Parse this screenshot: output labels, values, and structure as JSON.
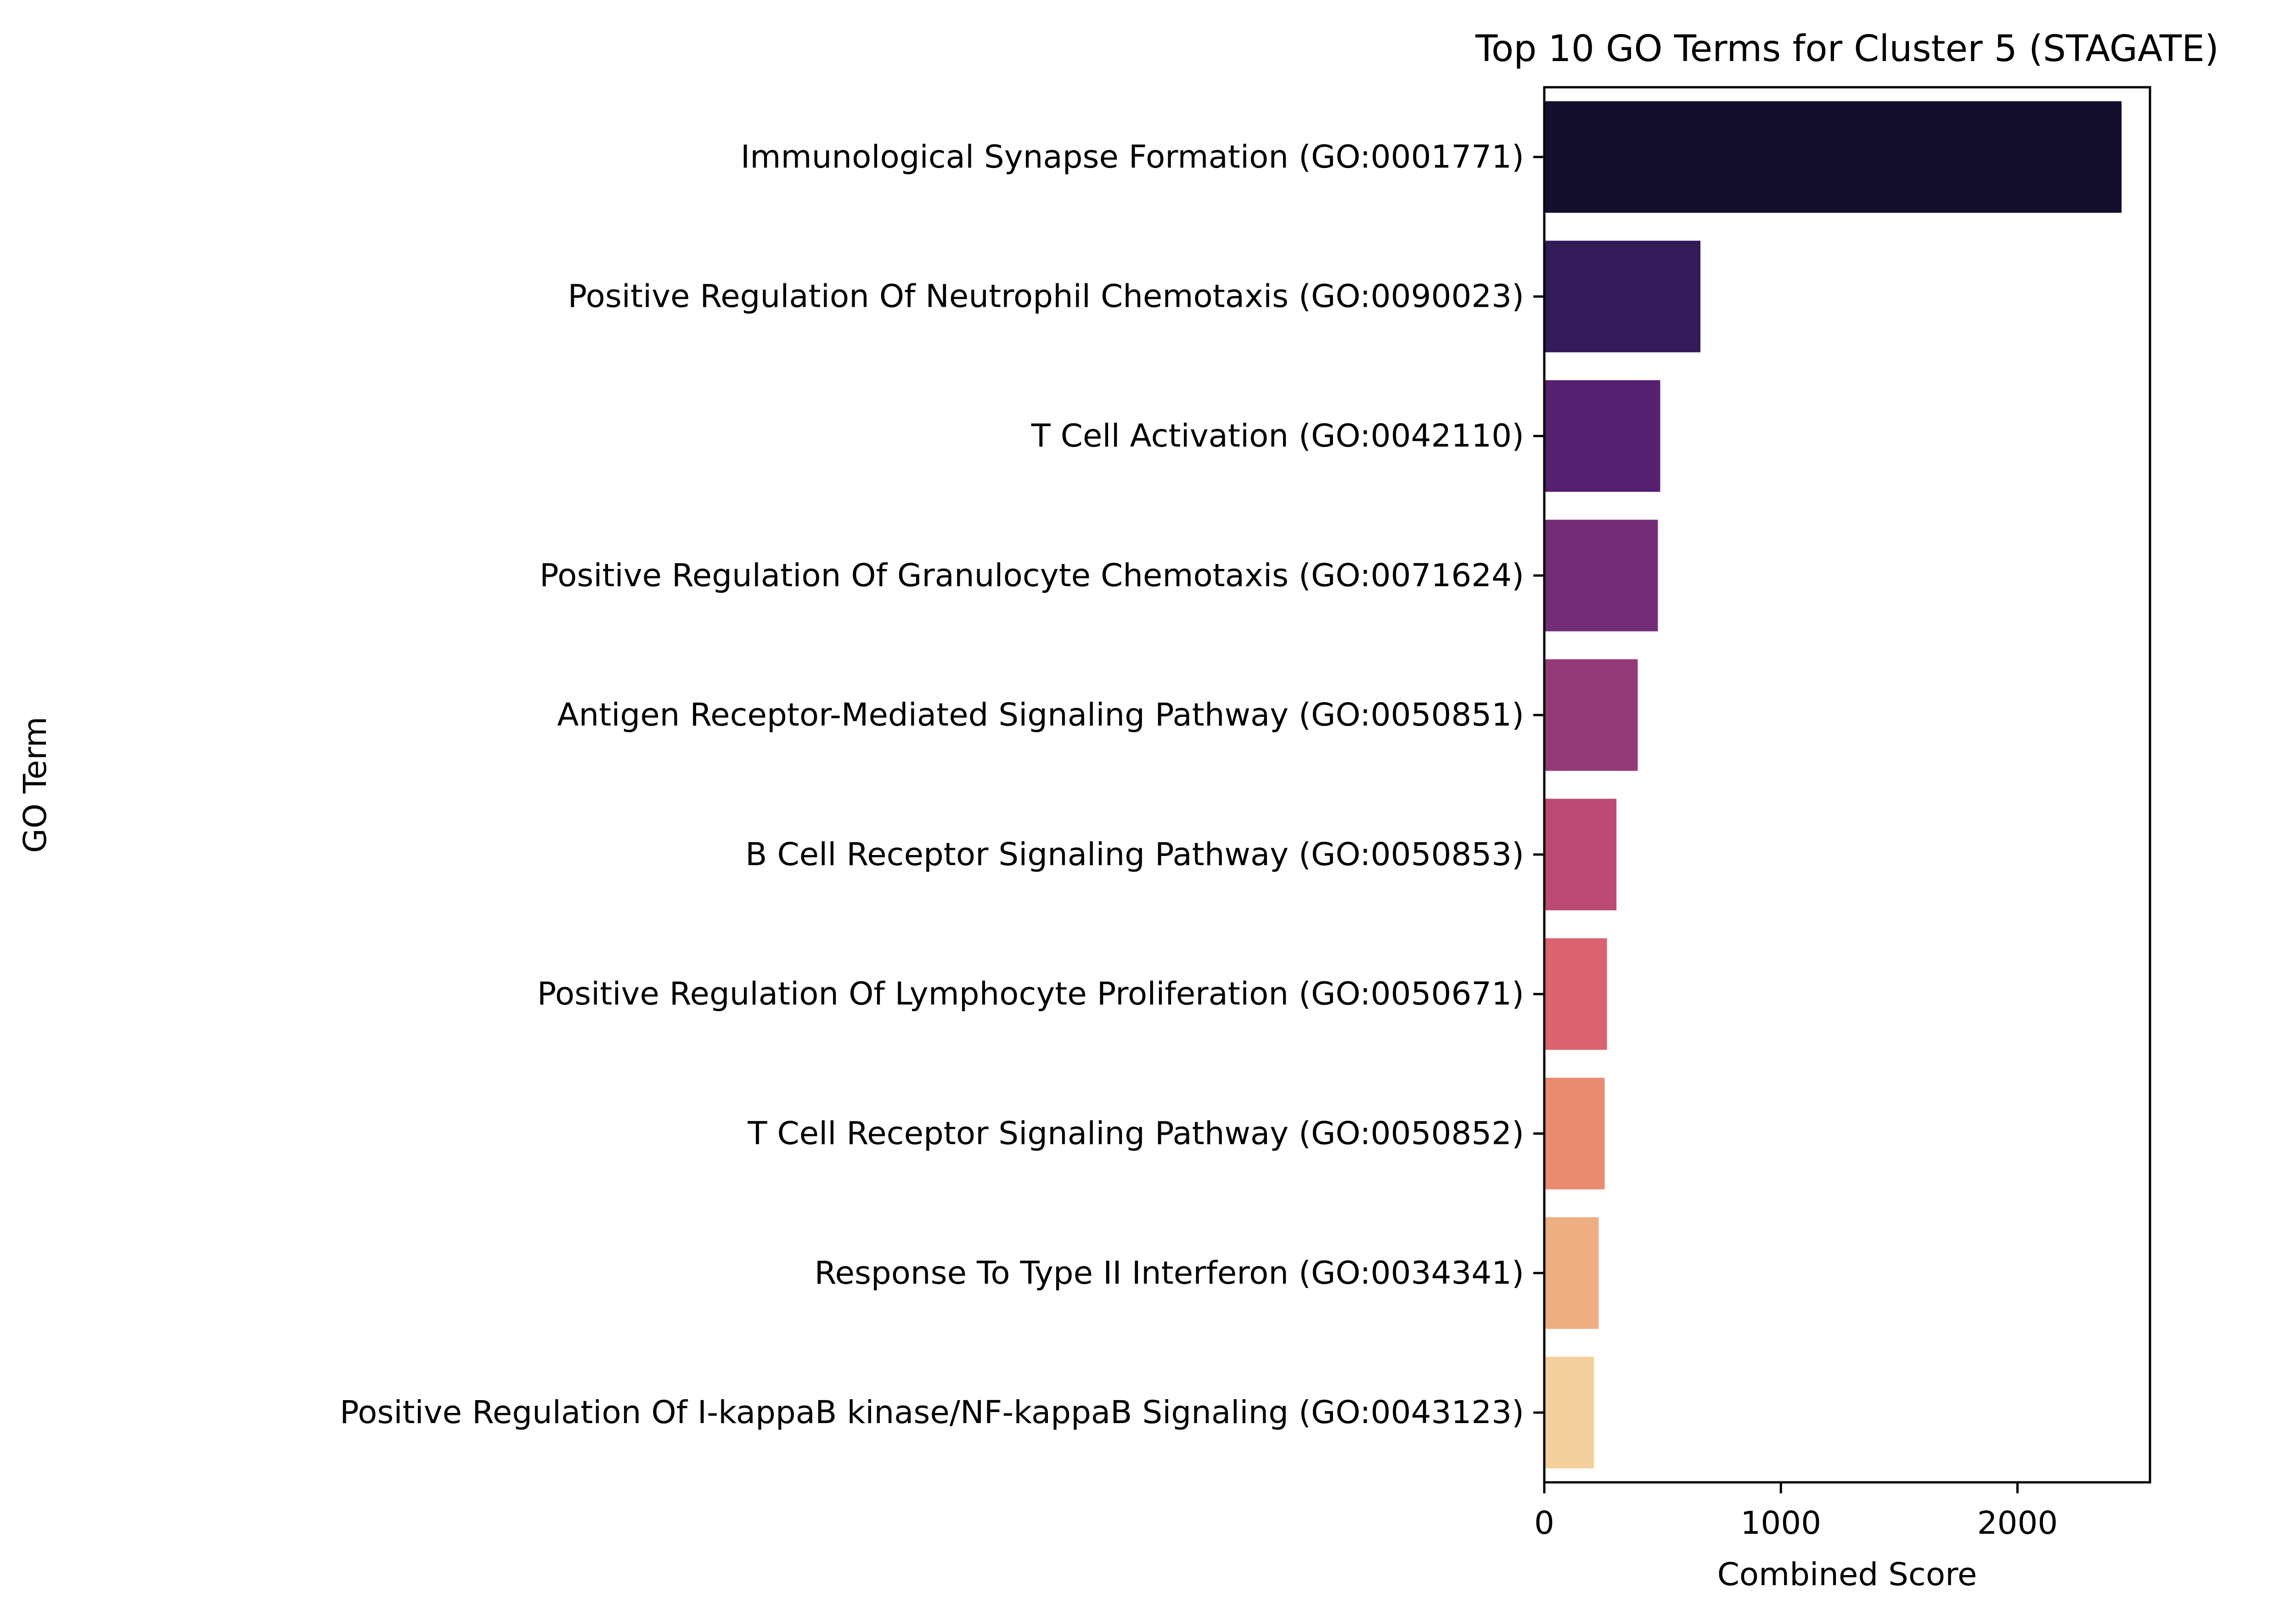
{
  "chart_data": {
    "type": "bar",
    "orientation": "horizontal",
    "title": "Top 10 GO Terms for Cluster 5 (STAGATE)",
    "xlabel": "Combined Score",
    "ylabel": "GO Term",
    "xlim": [
      0,
      2560
    ],
    "xticks": [
      0,
      1000,
      2000
    ],
    "xtick_labels": [
      "0",
      "1000",
      "2000"
    ],
    "grid": false,
    "legend": "none",
    "categories": [
      "Immunological Synapse Formation (GO:0001771)",
      "Positive Regulation Of Neutrophil Chemotaxis (GO:0090023)",
      "T Cell Activation (GO:0042110)",
      "Positive Regulation Of Granulocyte Chemotaxis (GO:0071624)",
      "Antigen Receptor-Mediated Signaling Pathway (GO:0050851)",
      "B Cell Receptor Signaling Pathway (GO:0050853)",
      "Positive Regulation Of Lymphocyte Proliferation (GO:0050671)",
      "T Cell Receptor Signaling Pathway (GO:0050852)",
      "Response To Type II Interferon (GO:0034341)",
      "Positive Regulation Of I-kappaB kinase/NF-kappaB Signaling (GO:0043123)"
    ],
    "values": [
      2440,
      660,
      490,
      480,
      395,
      305,
      265,
      255,
      230,
      210
    ],
    "colors": [
      "#150f2e",
      "#331b5a",
      "#552070",
      "#732d78",
      "#943a78",
      "#bc4b74",
      "#db6370",
      "#e88b71",
      "#efad82",
      "#f3d09c"
    ]
  }
}
